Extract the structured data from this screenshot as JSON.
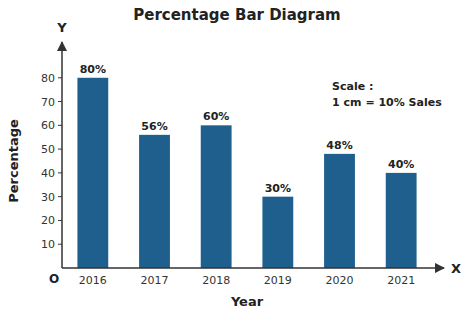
{
  "chart_data": {
    "type": "bar",
    "title": "Percentage Bar Diagram",
    "categories": [
      "2016",
      "2017",
      "2018",
      "2019",
      "2020",
      "2021"
    ],
    "values": [
      80,
      56,
      60,
      30,
      48,
      40
    ],
    "value_labels": [
      "80%",
      "56%",
      "60%",
      "30%",
      "48%",
      "40%"
    ],
    "data_labels": true,
    "color": "#1e5f8e",
    "xlabel": "Year",
    "ylabel": "Percentage",
    "ylim": [
      0,
      90
    ],
    "yticks": [
      10,
      20,
      30,
      40,
      50,
      60,
      70,
      80
    ],
    "grid": false,
    "annotations": [
      "X",
      "Y",
      "O",
      "Scale :\n1 cm = 10% Sales"
    ]
  }
}
